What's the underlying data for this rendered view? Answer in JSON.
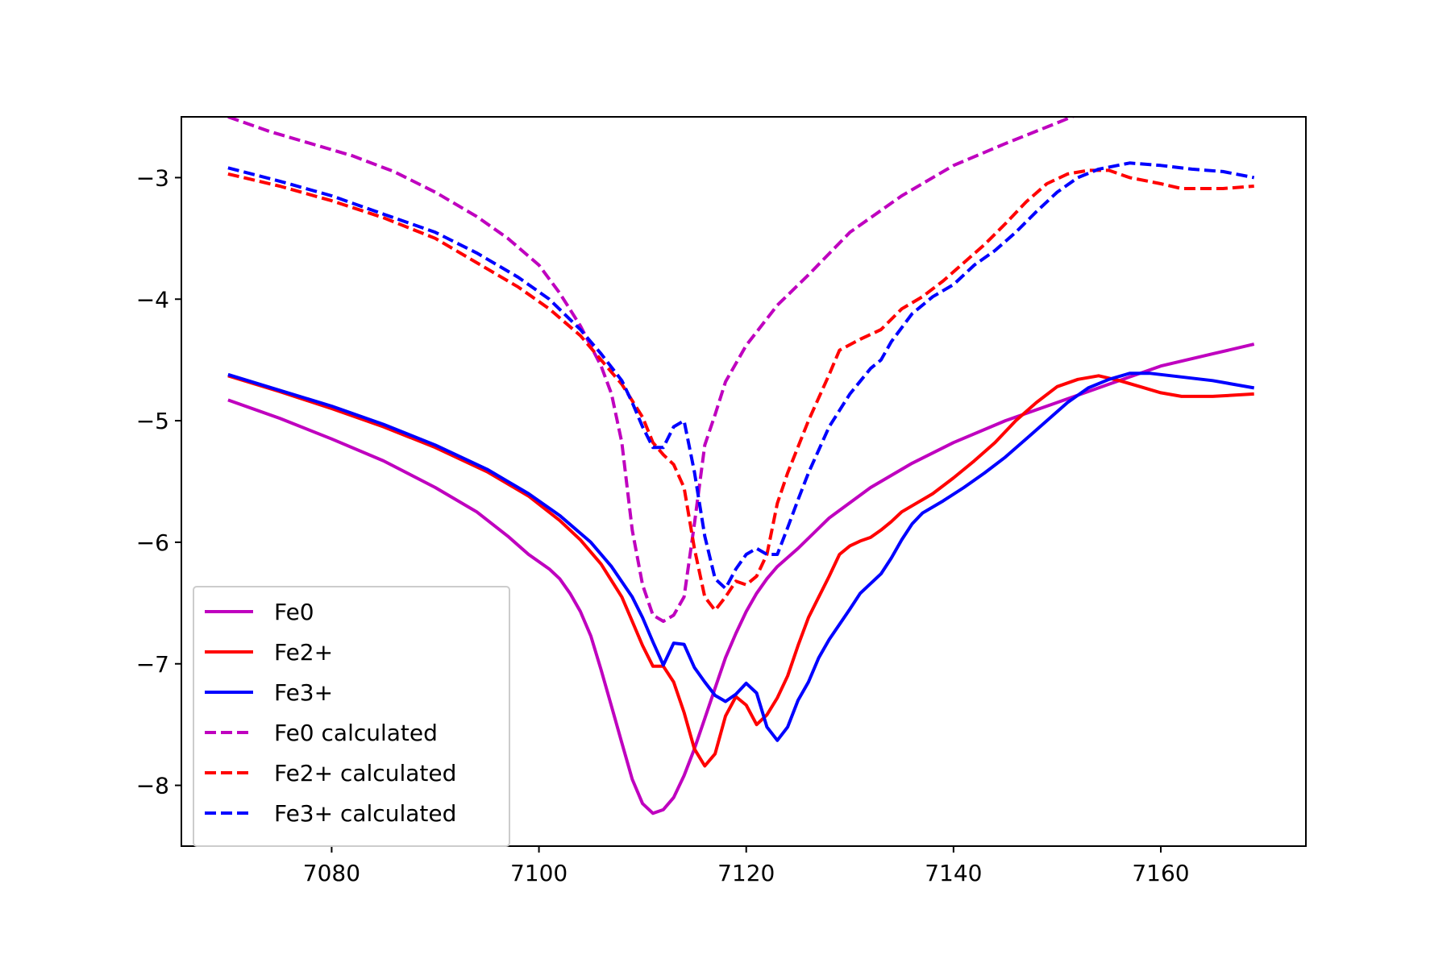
{
  "chart_data": {
    "type": "line",
    "title": "",
    "xlabel": "",
    "ylabel": "",
    "xlim": [
      7065.5,
      7174.0
    ],
    "ylim": [
      -8.5,
      -2.5
    ],
    "xticks": [
      7080,
      7100,
      7120,
      7140,
      7160
    ],
    "yticks": [
      -8,
      -7,
      -6,
      -5,
      -4,
      -3
    ],
    "xtick_labels": [
      "7080",
      "7100",
      "7120",
      "7140",
      "7160"
    ],
    "ytick_labels": [
      "−8",
      "−7",
      "−6",
      "−5",
      "−4",
      "−3"
    ],
    "grid": false,
    "legend_position": "lower-left",
    "series": [
      {
        "name": "Fe0",
        "color": "#bf00bf",
        "style": "solid",
        "points": [
          [
            7070,
            -4.83
          ],
          [
            7075,
            -4.98
          ],
          [
            7080,
            -5.15
          ],
          [
            7085,
            -5.33
          ],
          [
            7090,
            -5.55
          ],
          [
            7094,
            -5.75
          ],
          [
            7097,
            -5.95
          ],
          [
            7099,
            -6.1
          ],
          [
            7101,
            -6.22
          ],
          [
            7102,
            -6.3
          ],
          [
            7103,
            -6.42
          ],
          [
            7104,
            -6.57
          ],
          [
            7105,
            -6.77
          ],
          [
            7106,
            -7.05
          ],
          [
            7107,
            -7.35
          ],
          [
            7108,
            -7.65
          ],
          [
            7109,
            -7.95
          ],
          [
            7110,
            -8.15
          ],
          [
            7111,
            -8.23
          ],
          [
            7112,
            -8.2
          ],
          [
            7113,
            -8.1
          ],
          [
            7114,
            -7.92
          ],
          [
            7115,
            -7.7
          ],
          [
            7116,
            -7.45
          ],
          [
            7117,
            -7.2
          ],
          [
            7118,
            -6.95
          ],
          [
            7119,
            -6.75
          ],
          [
            7120,
            -6.57
          ],
          [
            7121,
            -6.42
          ],
          [
            7122,
            -6.3
          ],
          [
            7123,
            -6.2
          ],
          [
            7125,
            -6.05
          ],
          [
            7128,
            -5.8
          ],
          [
            7132,
            -5.55
          ],
          [
            7136,
            -5.35
          ],
          [
            7140,
            -5.18
          ],
          [
            7145,
            -5.0
          ],
          [
            7150,
            -4.85
          ],
          [
            7155,
            -4.7
          ],
          [
            7160,
            -4.55
          ],
          [
            7165,
            -4.45
          ],
          [
            7169,
            -4.37
          ]
        ]
      },
      {
        "name": "Fe2+",
        "color": "#ff0000",
        "style": "solid",
        "points": [
          [
            7070,
            -4.63
          ],
          [
            7075,
            -4.76
          ],
          [
            7080,
            -4.9
          ],
          [
            7085,
            -5.05
          ],
          [
            7090,
            -5.22
          ],
          [
            7095,
            -5.42
          ],
          [
            7099,
            -5.62
          ],
          [
            7102,
            -5.82
          ],
          [
            7104,
            -5.98
          ],
          [
            7106,
            -6.18
          ],
          [
            7108,
            -6.45
          ],
          [
            7109,
            -6.65
          ],
          [
            7110,
            -6.85
          ],
          [
            7111,
            -7.02
          ],
          [
            7112,
            -7.02
          ],
          [
            7113,
            -7.15
          ],
          [
            7114,
            -7.4
          ],
          [
            7115,
            -7.7
          ],
          [
            7116,
            -7.84
          ],
          [
            7117,
            -7.74
          ],
          [
            7118,
            -7.43
          ],
          [
            7119,
            -7.27
          ],
          [
            7120,
            -7.34
          ],
          [
            7121,
            -7.5
          ],
          [
            7122,
            -7.42
          ],
          [
            7123,
            -7.28
          ],
          [
            7124,
            -7.1
          ],
          [
            7125,
            -6.85
          ],
          [
            7126,
            -6.62
          ],
          [
            7127,
            -6.45
          ],
          [
            7128,
            -6.28
          ],
          [
            7129,
            -6.1
          ],
          [
            7130,
            -6.03
          ],
          [
            7131,
            -5.99
          ],
          [
            7132,
            -5.96
          ],
          [
            7133,
            -5.9
          ],
          [
            7134,
            -5.83
          ],
          [
            7135,
            -5.75
          ],
          [
            7136,
            -5.7
          ],
          [
            7138,
            -5.6
          ],
          [
            7140,
            -5.47
          ],
          [
            7142,
            -5.33
          ],
          [
            7144,
            -5.18
          ],
          [
            7146,
            -5.0
          ],
          [
            7148,
            -4.85
          ],
          [
            7150,
            -4.72
          ],
          [
            7152,
            -4.66
          ],
          [
            7154,
            -4.63
          ],
          [
            7156,
            -4.67
          ],
          [
            7158,
            -4.72
          ],
          [
            7160,
            -4.77
          ],
          [
            7162,
            -4.8
          ],
          [
            7165,
            -4.8
          ],
          [
            7169,
            -4.78
          ]
        ]
      },
      {
        "name": "Fe3+",
        "color": "#0000ff",
        "style": "solid",
        "points": [
          [
            7070,
            -4.62
          ],
          [
            7075,
            -4.75
          ],
          [
            7080,
            -4.88
          ],
          [
            7085,
            -5.03
          ],
          [
            7090,
            -5.2
          ],
          [
            7095,
            -5.4
          ],
          [
            7099,
            -5.6
          ],
          [
            7102,
            -5.78
          ],
          [
            7105,
            -6.0
          ],
          [
            7107,
            -6.2
          ],
          [
            7109,
            -6.45
          ],
          [
            7110,
            -6.62
          ],
          [
            7111,
            -6.82
          ],
          [
            7112,
            -7.01
          ],
          [
            7113,
            -6.83
          ],
          [
            7114,
            -6.84
          ],
          [
            7115,
            -7.03
          ],
          [
            7116,
            -7.15
          ],
          [
            7117,
            -7.26
          ],
          [
            7118,
            -7.31
          ],
          [
            7119,
            -7.25
          ],
          [
            7120,
            -7.16
          ],
          [
            7121,
            -7.24
          ],
          [
            7122,
            -7.52
          ],
          [
            7123,
            -7.63
          ],
          [
            7124,
            -7.52
          ],
          [
            7125,
            -7.3
          ],
          [
            7126,
            -7.15
          ],
          [
            7127,
            -6.95
          ],
          [
            7128,
            -6.8
          ],
          [
            7130,
            -6.55
          ],
          [
            7131,
            -6.42
          ],
          [
            7133,
            -6.26
          ],
          [
            7134,
            -6.13
          ],
          [
            7135,
            -5.98
          ],
          [
            7136,
            -5.85
          ],
          [
            7137,
            -5.76
          ],
          [
            7139,
            -5.66
          ],
          [
            7141,
            -5.55
          ],
          [
            7143,
            -5.43
          ],
          [
            7145,
            -5.3
          ],
          [
            7147,
            -5.15
          ],
          [
            7149,
            -5.0
          ],
          [
            7151,
            -4.85
          ],
          [
            7153,
            -4.73
          ],
          [
            7155,
            -4.66
          ],
          [
            7157,
            -4.61
          ],
          [
            7159,
            -4.61
          ],
          [
            7161,
            -4.63
          ],
          [
            7163,
            -4.65
          ],
          [
            7165,
            -4.67
          ],
          [
            7169,
            -4.73
          ]
        ]
      },
      {
        "name": "Fe0 calculated",
        "color": "#bf00bf",
        "style": "dashed",
        "points": [
          [
            7070,
            -2.5
          ],
          [
            7074,
            -2.62
          ],
          [
            7078,
            -2.72
          ],
          [
            7082,
            -2.82
          ],
          [
            7086,
            -2.95
          ],
          [
            7090,
            -3.12
          ],
          [
            7094,
            -3.32
          ],
          [
            7097,
            -3.5
          ],
          [
            7100,
            -3.72
          ],
          [
            7102,
            -3.95
          ],
          [
            7104,
            -4.22
          ],
          [
            7106,
            -4.55
          ],
          [
            7107,
            -4.78
          ],
          [
            7108,
            -5.18
          ],
          [
            7109,
            -5.9
          ],
          [
            7110,
            -6.35
          ],
          [
            7111,
            -6.6
          ],
          [
            7112,
            -6.65
          ],
          [
            7113,
            -6.6
          ],
          [
            7114,
            -6.45
          ],
          [
            7115,
            -5.85
          ],
          [
            7116,
            -5.2
          ],
          [
            7117,
            -4.95
          ],
          [
            7118,
            -4.68
          ],
          [
            7120,
            -4.38
          ],
          [
            7123,
            -4.05
          ],
          [
            7126,
            -3.8
          ],
          [
            7130,
            -3.45
          ],
          [
            7135,
            -3.15
          ],
          [
            7140,
            -2.9
          ],
          [
            7145,
            -2.72
          ],
          [
            7150,
            -2.55
          ],
          [
            7152,
            -2.48
          ]
        ]
      },
      {
        "name": "Fe2+ calculated",
        "color": "#ff0000",
        "style": "dashed",
        "points": [
          [
            7070,
            -2.97
          ],
          [
            7075,
            -3.07
          ],
          [
            7080,
            -3.19
          ],
          [
            7085,
            -3.33
          ],
          [
            7090,
            -3.5
          ],
          [
            7094,
            -3.7
          ],
          [
            7098,
            -3.9
          ],
          [
            7101,
            -4.08
          ],
          [
            7104,
            -4.3
          ],
          [
            7106,
            -4.5
          ],
          [
            7108,
            -4.7
          ],
          [
            7110,
            -4.97
          ],
          [
            7111,
            -5.18
          ],
          [
            7112,
            -5.28
          ],
          [
            7113,
            -5.36
          ],
          [
            7114,
            -5.55
          ],
          [
            7115,
            -6.05
          ],
          [
            7116,
            -6.45
          ],
          [
            7117,
            -6.56
          ],
          [
            7118,
            -6.45
          ],
          [
            7119,
            -6.32
          ],
          [
            7120,
            -6.35
          ],
          [
            7121,
            -6.28
          ],
          [
            7122,
            -6.1
          ],
          [
            7123,
            -5.68
          ],
          [
            7124,
            -5.43
          ],
          [
            7126,
            -5.0
          ],
          [
            7128,
            -4.62
          ],
          [
            7129,
            -4.42
          ],
          [
            7131,
            -4.33
          ],
          [
            7133,
            -4.25
          ],
          [
            7135,
            -4.08
          ],
          [
            7137,
            -3.98
          ],
          [
            7139,
            -3.85
          ],
          [
            7141,
            -3.7
          ],
          [
            7143,
            -3.55
          ],
          [
            7145,
            -3.38
          ],
          [
            7147,
            -3.2
          ],
          [
            7149,
            -3.05
          ],
          [
            7151,
            -2.97
          ],
          [
            7153,
            -2.94
          ],
          [
            7155,
            -2.94
          ],
          [
            7157,
            -3.0
          ],
          [
            7160,
            -3.05
          ],
          [
            7162,
            -3.09
          ],
          [
            7166,
            -3.09
          ],
          [
            7169,
            -3.07
          ]
        ]
      },
      {
        "name": "Fe3+ calculated",
        "color": "#0000ff",
        "style": "dashed",
        "points": [
          [
            7070,
            -2.92
          ],
          [
            7075,
            -3.03
          ],
          [
            7080,
            -3.15
          ],
          [
            7085,
            -3.3
          ],
          [
            7090,
            -3.45
          ],
          [
            7094,
            -3.62
          ],
          [
            7098,
            -3.82
          ],
          [
            7101,
            -4.0
          ],
          [
            7104,
            -4.25
          ],
          [
            7106,
            -4.45
          ],
          [
            7108,
            -4.67
          ],
          [
            7109,
            -4.85
          ],
          [
            7110,
            -5.05
          ],
          [
            7111,
            -5.22
          ],
          [
            7112,
            -5.22
          ],
          [
            7113,
            -5.05
          ],
          [
            7114,
            -5.0
          ],
          [
            7115,
            -5.42
          ],
          [
            7116,
            -5.95
          ],
          [
            7117,
            -6.3
          ],
          [
            7118,
            -6.38
          ],
          [
            7119,
            -6.22
          ],
          [
            7120,
            -6.1
          ],
          [
            7121,
            -6.05
          ],
          [
            7122,
            -6.1
          ],
          [
            7123,
            -6.1
          ],
          [
            7124,
            -5.88
          ],
          [
            7125,
            -5.65
          ],
          [
            7126,
            -5.43
          ],
          [
            7128,
            -5.05
          ],
          [
            7130,
            -4.78
          ],
          [
            7132,
            -4.57
          ],
          [
            7133,
            -4.5
          ],
          [
            7134,
            -4.35
          ],
          [
            7136,
            -4.12
          ],
          [
            7138,
            -3.98
          ],
          [
            7140,
            -3.88
          ],
          [
            7142,
            -3.72
          ],
          [
            7144,
            -3.6
          ],
          [
            7146,
            -3.45
          ],
          [
            7148,
            -3.28
          ],
          [
            7150,
            -3.12
          ],
          [
            7152,
            -3.0
          ],
          [
            7154,
            -2.93
          ],
          [
            7157,
            -2.88
          ],
          [
            7160,
            -2.9
          ],
          [
            7163,
            -2.93
          ],
          [
            7166,
            -2.95
          ],
          [
            7169,
            -3.0
          ]
        ]
      }
    ]
  }
}
